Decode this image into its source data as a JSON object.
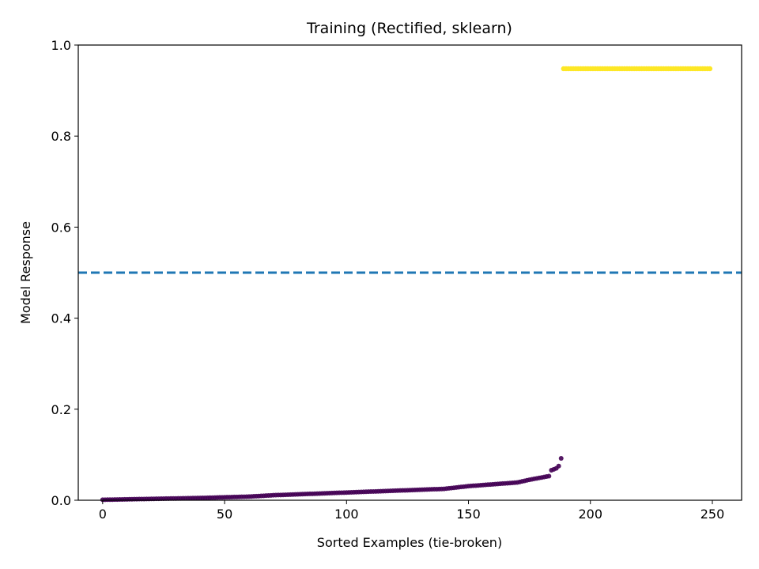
{
  "chart_data": {
    "type": "scatter",
    "title": "Training (Rectified, sklearn)",
    "xlabel": "Sorted Examples (tie-broken)",
    "ylabel": "Model Response",
    "xlim": [
      -10,
      262
    ],
    "ylim": [
      0.0,
      1.0
    ],
    "xticks": [
      0,
      50,
      100,
      150,
      200,
      250
    ],
    "yticks": [
      0.0,
      0.2,
      0.4,
      0.6,
      0.8,
      1.0
    ],
    "xtick_labels": [
      "0",
      "50",
      "100",
      "150",
      "200",
      "250"
    ],
    "ytick_labels": [
      "0.0",
      "0.2",
      "0.4",
      "0.6",
      "0.8",
      "1.0"
    ],
    "grid": false,
    "threshold": {
      "y": 0.5,
      "style": "dashed",
      "color": "#1f77b4"
    },
    "series": [
      {
        "class": 0,
        "color": "#440154",
        "x_start": 0,
        "x_end": 188,
        "profile_x": [
          0,
          20,
          40,
          60,
          70,
          80,
          100,
          120,
          140,
          145,
          150,
          160,
          170,
          175,
          180,
          183,
          184,
          186,
          187,
          188
        ],
        "profile_y": [
          0.001,
          0.003,
          0.005,
          0.008,
          0.011,
          0.013,
          0.017,
          0.021,
          0.025,
          0.028,
          0.031,
          0.035,
          0.039,
          0.045,
          0.05,
          0.053,
          0.066,
          0.07,
          0.075,
          0.092
        ]
      },
      {
        "class": 1,
        "color": "#fde725",
        "x_start": 189,
        "x_end": 249,
        "constant_y": 0.948
      }
    ]
  }
}
